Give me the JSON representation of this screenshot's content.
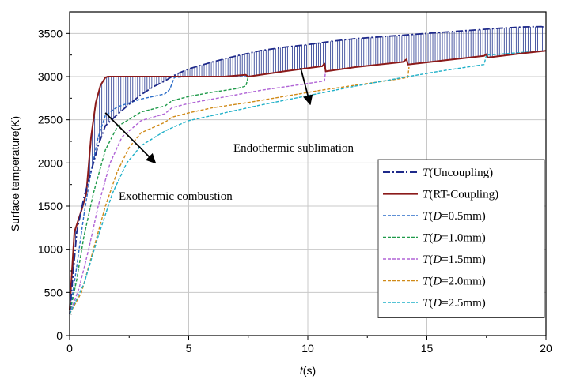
{
  "chart_data": {
    "type": "line",
    "xlabel_italic": "t",
    "xlabel_unit": "(s)",
    "ylabel": "Surface temperature(K)",
    "xlim": [
      0,
      20
    ],
    "ylim": [
      0,
      3750
    ],
    "xticks": [
      0,
      5,
      10,
      15,
      20
    ],
    "yticks": [
      0,
      500,
      1000,
      1500,
      2000,
      2500,
      3000,
      3500
    ],
    "grid": true,
    "legend_position": "bottom-right",
    "annotations": [
      {
        "text": "Endothermic sublimation",
        "arrow_from": [
          9.7,
          3100
        ],
        "arrow_to": [
          10.1,
          2680
        ]
      },
      {
        "text": "Exothermic combustion",
        "arrow_from": [
          1.5,
          2580
        ],
        "arrow_to": [
          3.6,
          2000
        ]
      }
    ],
    "series": [
      {
        "name": "Uncoupling",
        "prefix": "T",
        "label_rest": "(Uncoupling)",
        "color": "#1f2a8a",
        "dash": "9,3,2,3",
        "width": 1.8,
        "x": [
          0,
          0.3,
          0.6,
          0.9,
          1.2,
          1.5,
          2.0,
          2.5,
          3.0,
          3.5,
          4.0,
          4.3,
          4.5,
          5.0,
          6.0,
          7.0,
          7.5,
          8.0,
          9.0,
          10.0,
          10.5,
          11.0,
          12.0,
          13.0,
          14.0,
          15.0,
          16.0,
          17.0,
          18.0,
          19.0,
          19.8,
          20.0
        ],
        "y": [
          250,
          1200,
          1600,
          1900,
          2200,
          2430,
          2560,
          2680,
          2790,
          2880,
          2950,
          3000,
          3030,
          3090,
          3170,
          3240,
          3270,
          3300,
          3340,
          3370,
          3390,
          3410,
          3440,
          3460,
          3480,
          3500,
          3520,
          3540,
          3560,
          3575,
          3580,
          3570
        ]
      },
      {
        "name": "RT-Coupling",
        "prefix": "T",
        "label_rest": "(RT-Coupling)",
        "color": "#8b1a1a",
        "dash": "",
        "width": 2,
        "x": [
          0,
          0.2,
          0.5,
          0.7,
          0.9,
          1.1,
          1.3,
          1.5,
          1.6,
          5.0,
          6.5,
          7.4,
          7.5,
          9.0,
          10.6,
          10.7,
          10.75,
          12.0,
          14.0,
          14.15,
          14.2,
          15.5,
          17.4,
          17.5,
          17.55,
          19.0,
          20.0
        ],
        "y": [
          300,
          1200,
          1450,
          1650,
          2300,
          2700,
          2900,
          2990,
          3000,
          3000,
          3000,
          3020,
          3000,
          3060,
          3120,
          3150,
          3060,
          3110,
          3170,
          3200,
          3140,
          3180,
          3240,
          3260,
          3220,
          3270,
          3300
        ]
      },
      {
        "name": "D=0.5mm",
        "prefix": "T",
        "label_rest": "(D=0.5mm)",
        "color": "#2a6cc8",
        "dash": "4,2",
        "width": 1.4,
        "x": [
          0,
          0.3,
          0.6,
          0.9,
          1.2,
          1.5,
          2.0,
          3.0,
          4.0,
          4.2,
          4.4,
          5.0,
          6.0,
          7.0,
          7.5
        ],
        "y": [
          250,
          800,
          1400,
          1900,
          2300,
          2550,
          2650,
          2740,
          2800,
          2850,
          2990,
          3000,
          3000,
          3000,
          3000
        ]
      },
      {
        "name": "D=1.0mm",
        "prefix": "T",
        "label_rest": "(D=1.0mm)",
        "color": "#1f9a4a",
        "dash": "4,2",
        "width": 1.4,
        "x": [
          0,
          0.3,
          0.6,
          1.0,
          1.5,
          2.0,
          3.0,
          4.0,
          4.3,
          5.0,
          6.0,
          7.0,
          7.4,
          7.5
        ],
        "y": [
          250,
          650,
          1150,
          1650,
          2150,
          2420,
          2590,
          2660,
          2720,
          2770,
          2820,
          2860,
          2890,
          3000
        ]
      },
      {
        "name": "D=1.5mm",
        "prefix": "T",
        "label_rest": "(D=1.5mm)",
        "color": "#b064d6",
        "dash": "4,2",
        "width": 1.4,
        "x": [
          0,
          0.4,
          0.8,
          1.2,
          1.7,
          2.2,
          3.0,
          4.0,
          4.3,
          5.0,
          6.0,
          7.0,
          8.0,
          9.0,
          10.0,
          10.7,
          10.75
        ],
        "y": [
          250,
          550,
          1000,
          1500,
          2000,
          2300,
          2490,
          2570,
          2640,
          2690,
          2740,
          2790,
          2840,
          2880,
          2920,
          2950,
          3080
        ]
      },
      {
        "name": "D=2.0mm",
        "prefix": "T",
        "label_rest": "(D=2.0mm)",
        "color": "#d08a18",
        "dash": "4,2",
        "width": 1.4,
        "x": [
          0,
          0.5,
          1.0,
          1.5,
          2.0,
          2.5,
          3.0,
          4.0,
          4.3,
          5.0,
          6.0,
          7.5,
          9.0,
          10.5,
          12.0,
          13.5,
          14.2,
          14.25
        ],
        "y": [
          250,
          500,
          1000,
          1500,
          1900,
          2180,
          2350,
          2470,
          2530,
          2580,
          2640,
          2700,
          2770,
          2840,
          2900,
          2960,
          2990,
          3110
        ]
      },
      {
        "name": "D=2.5mm",
        "prefix": "T",
        "label_rest": "(D=2.5mm)",
        "color": "#1fb0c8",
        "dash": "4,2",
        "width": 1.4,
        "x": [
          0,
          0.6,
          1.2,
          1.8,
          2.4,
          3.0,
          4.0,
          4.4,
          5.0,
          6.5,
          8.0,
          10.0,
          12.0,
          14.0,
          15.5,
          17.4,
          17.5,
          18.5,
          20.0
        ],
        "y": [
          250,
          600,
          1150,
          1650,
          2000,
          2200,
          2370,
          2420,
          2490,
          2580,
          2670,
          2780,
          2890,
          2990,
          3060,
          3140,
          3250,
          3270,
          3300
        ]
      }
    ]
  }
}
